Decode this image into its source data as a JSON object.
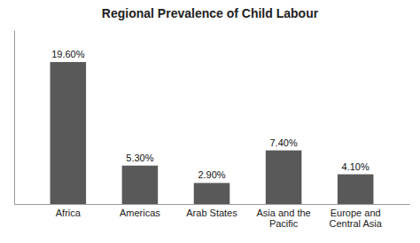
{
  "chart_data": {
    "type": "bar",
    "title": "Regional Prevalence of Child Labour",
    "categories": [
      "Africa",
      "Americas",
      "Arab States",
      "Asia and the\nPacific",
      "Europe and\nCentral Asia"
    ],
    "values": [
      19.6,
      5.3,
      2.9,
      7.4,
      4.1
    ],
    "value_labels": [
      "19.60%",
      "5.30%",
      "2.90%",
      "7.40%",
      "4.10%"
    ],
    "color": "#595959",
    "ylim": [
      0,
      24
    ],
    "data_labels": true,
    "tick_labels": "x"
  }
}
